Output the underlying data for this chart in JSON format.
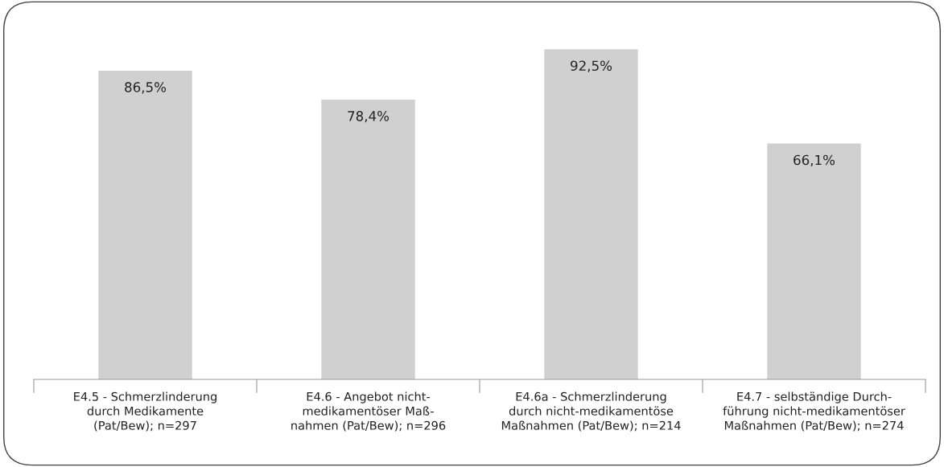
{
  "chart_data": {
    "type": "bar",
    "categories": [
      "E4.5 - Schmerzlinderung\ndurch Medikamente\n(Pat/Bew); n=297",
      "E4.6 - Angebot nicht-\nmedikamentöser Maß-\nnahmen (Pat/Bew); n=296",
      "E4.6a - Schmerzlinderung\ndurch nicht-medikamentöse\nMaßnahmen (Pat/Bew); n=214",
      "E4.7 - selbständige Durch-\nführung nicht-medikamentöser\nMaßnahmen (Pat/Bew); n=274"
    ],
    "values": [
      86.5,
      78.4,
      92.5,
      66.1
    ],
    "value_labels": [
      "86,5%",
      "78,4%",
      "92,5%",
      "66,1%"
    ],
    "color": "#d0d0d0",
    "grid": false,
    "legend": false
  }
}
